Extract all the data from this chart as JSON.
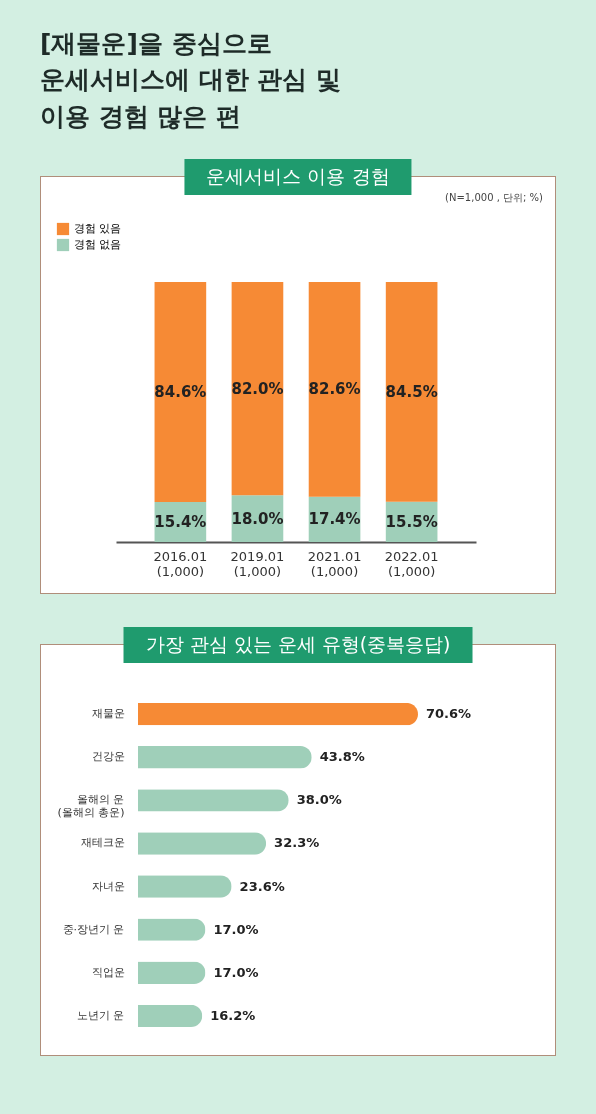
{
  "chart_data": [
    {
      "type": "bar",
      "title": "[재물운]을 중심으로\n운세서비스에 대한 관심 및\n이용 경험 많은 편",
      "subtitle": "운세서비스 이용 경험",
      "annotations": [
        "(N=1,000 , 단위; %)"
      ],
      "categories": [
        "2016.01\n(1,000)",
        "2019.01\n(1,000)",
        "2021.01\n(1,000)",
        "2022.01\n(1,000)"
      ],
      "stacked": true,
      "series": [
        {
          "name": "경험 없음",
          "color": "#9fcfb9",
          "values": [
            15.4,
            18.0,
            17.4,
            15.5
          ],
          "value_labels": [
            "15.4%",
            "18.0%",
            "17.4%",
            "15.5%"
          ]
        },
        {
          "name": "경험 있음",
          "color": "#f68a35",
          "values": [
            84.6,
            82.0,
            82.6,
            84.5
          ],
          "value_labels": [
            "84.6%",
            "82.0%",
            "82.6%",
            "84.5%"
          ]
        }
      ],
      "legend": "top left",
      "tick_labels": "x"
    },
    {
      "type": "bar",
      "title": "가장 관심 있는 운세 유형(중복응답)",
      "orientation": "horizontal",
      "categories": [
        "재물운",
        "건강운",
        "올해의 운\n(올해의 총운)",
        "재테크운",
        "자녀운",
        "중·장년기 운",
        "직업운",
        "노년기 운"
      ],
      "values": [
        70.6,
        43.8,
        38.0,
        32.3,
        23.6,
        17.0,
        17.0,
        16.2
      ],
      "colors": [
        "#f68a35",
        "#9fcfb9",
        "#9fcfb9",
        "#9fcfb9",
        "#9fcfb9",
        "#9fcfb9",
        "#9fcfb9",
        "#9fcfb9"
      ],
      "value_labels": [
        "70.6%",
        "43.8%",
        "38.0%",
        "32.3%",
        "23.6%",
        "17.0%",
        "17.0%",
        "16.2%"
      ],
      "tick_labels": "y",
      "legend": false
    }
  ]
}
